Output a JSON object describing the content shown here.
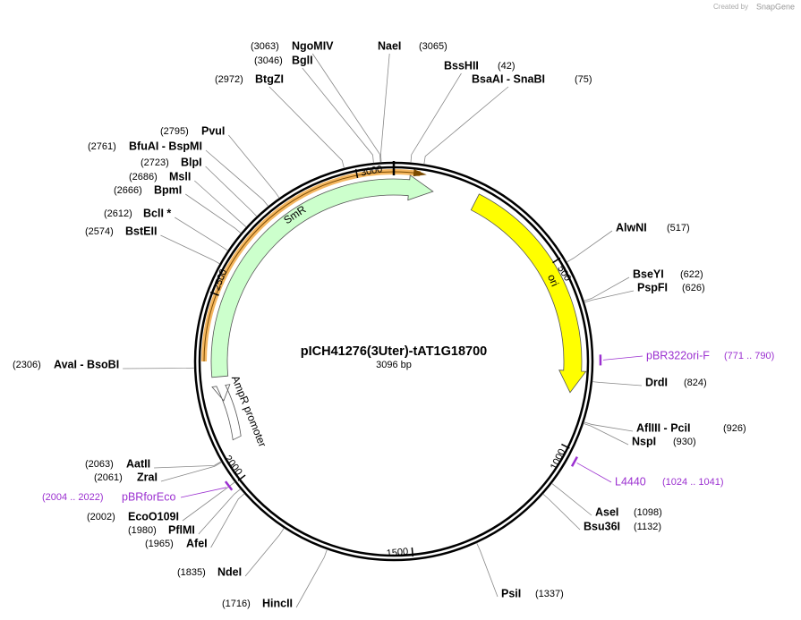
{
  "header": {
    "credit": "Created by",
    "brand": "SnapGene"
  },
  "plasmid": {
    "name": "pICH41276(3Uter)-tAT1G18700",
    "length": {
      "value": 3096,
      "label": "3096 bp"
    }
  },
  "sites": [
    {
      "name": "NgoMIV",
      "position": {
        "value": 3063,
        "label": "(3063)"
      }
    },
    {
      "name": "BglI",
      "position": {
        "value": 3046,
        "label": "(3046)"
      }
    },
    {
      "name": "BtgZI",
      "position": {
        "value": 2972,
        "label": "(2972)"
      }
    },
    {
      "name": "PvuI",
      "position": {
        "value": 2795,
        "label": "(2795)"
      }
    },
    {
      "name": "BfuAI - BspMI",
      "position": {
        "value": 2761,
        "label": "(2761)"
      }
    },
    {
      "name": "BlpI",
      "position": {
        "value": 2723,
        "label": "(2723)"
      }
    },
    {
      "name": "MslI",
      "position": {
        "value": 2686,
        "label": "(2686)"
      }
    },
    {
      "name": "BpmI",
      "position": {
        "value": 2666,
        "label": "(2666)"
      }
    },
    {
      "name": "BclI *",
      "position": {
        "value": 2612,
        "label": "(2612)"
      }
    },
    {
      "name": "BstEII",
      "position": {
        "value": 2574,
        "label": "(2574)"
      }
    },
    {
      "name": "AvaI - BsoBI",
      "position": {
        "value": 2306,
        "label": "(2306)"
      }
    },
    {
      "name": "AatII",
      "position": {
        "value": 2063,
        "label": "(2063)"
      }
    },
    {
      "name": "ZraI",
      "position": {
        "value": 2061,
        "label": "(2061)"
      }
    },
    {
      "name": "EcoO109I",
      "position": {
        "value": 2002,
        "label": "(2002)"
      }
    },
    {
      "name": "PflMI",
      "position": {
        "value": 1980,
        "label": "(1980)"
      }
    },
    {
      "name": "AfeI",
      "position": {
        "value": 1965,
        "label": "(1965)"
      }
    },
    {
      "name": "NdeI",
      "position": {
        "value": 1835,
        "label": "(1835)"
      }
    },
    {
      "name": "HincII",
      "position": {
        "value": 1716,
        "label": "(1716)"
      }
    },
    {
      "name": "NaeI",
      "position": {
        "value": 3065,
        "label": "(3065)"
      }
    },
    {
      "name": "BssHII",
      "position": {
        "value": 42,
        "label": "(42)"
      }
    },
    {
      "name": "BsaAI - SnaBI",
      "position": {
        "value": 75,
        "label": "(75)"
      }
    },
    {
      "name": "AlwNI",
      "position": {
        "value": 517,
        "label": "(517)"
      }
    },
    {
      "name": "BseYI",
      "position": {
        "value": 622,
        "label": "(622)"
      }
    },
    {
      "name": "PspFI",
      "position": {
        "value": 626,
        "label": "(626)"
      }
    },
    {
      "name": "DrdI",
      "position": {
        "value": 824,
        "label": "(824)"
      }
    },
    {
      "name": "AflIII - PciI",
      "position": {
        "value": 926,
        "label": "(926)"
      }
    },
    {
      "name": "NspI",
      "position": {
        "value": 930,
        "label": "(930)"
      }
    },
    {
      "name": "AseI",
      "position": {
        "value": 1098,
        "label": "(1098)"
      }
    },
    {
      "name": "Bsu36I",
      "position": {
        "value": 1132,
        "label": "(1132)"
      }
    },
    {
      "name": "PsiI",
      "position": {
        "value": 1337,
        "label": "(1337)"
      }
    }
  ],
  "features": [
    {
      "label": "SmR"
    },
    {
      "label": "ori"
    },
    {
      "label": "AmpR promoter"
    }
  ],
  "primers": [
    {
      "name": "pBR322ori-F",
      "range": "(771 .. 790)"
    },
    {
      "name": "L4440",
      "range": "(1024 .. 1041)"
    },
    {
      "name": "pBRforEco",
      "range": "(2004 .. 2022)"
    }
  ],
  "scale_ticks": [
    500,
    1000,
    1500,
    2000,
    2500,
    3000
  ]
}
